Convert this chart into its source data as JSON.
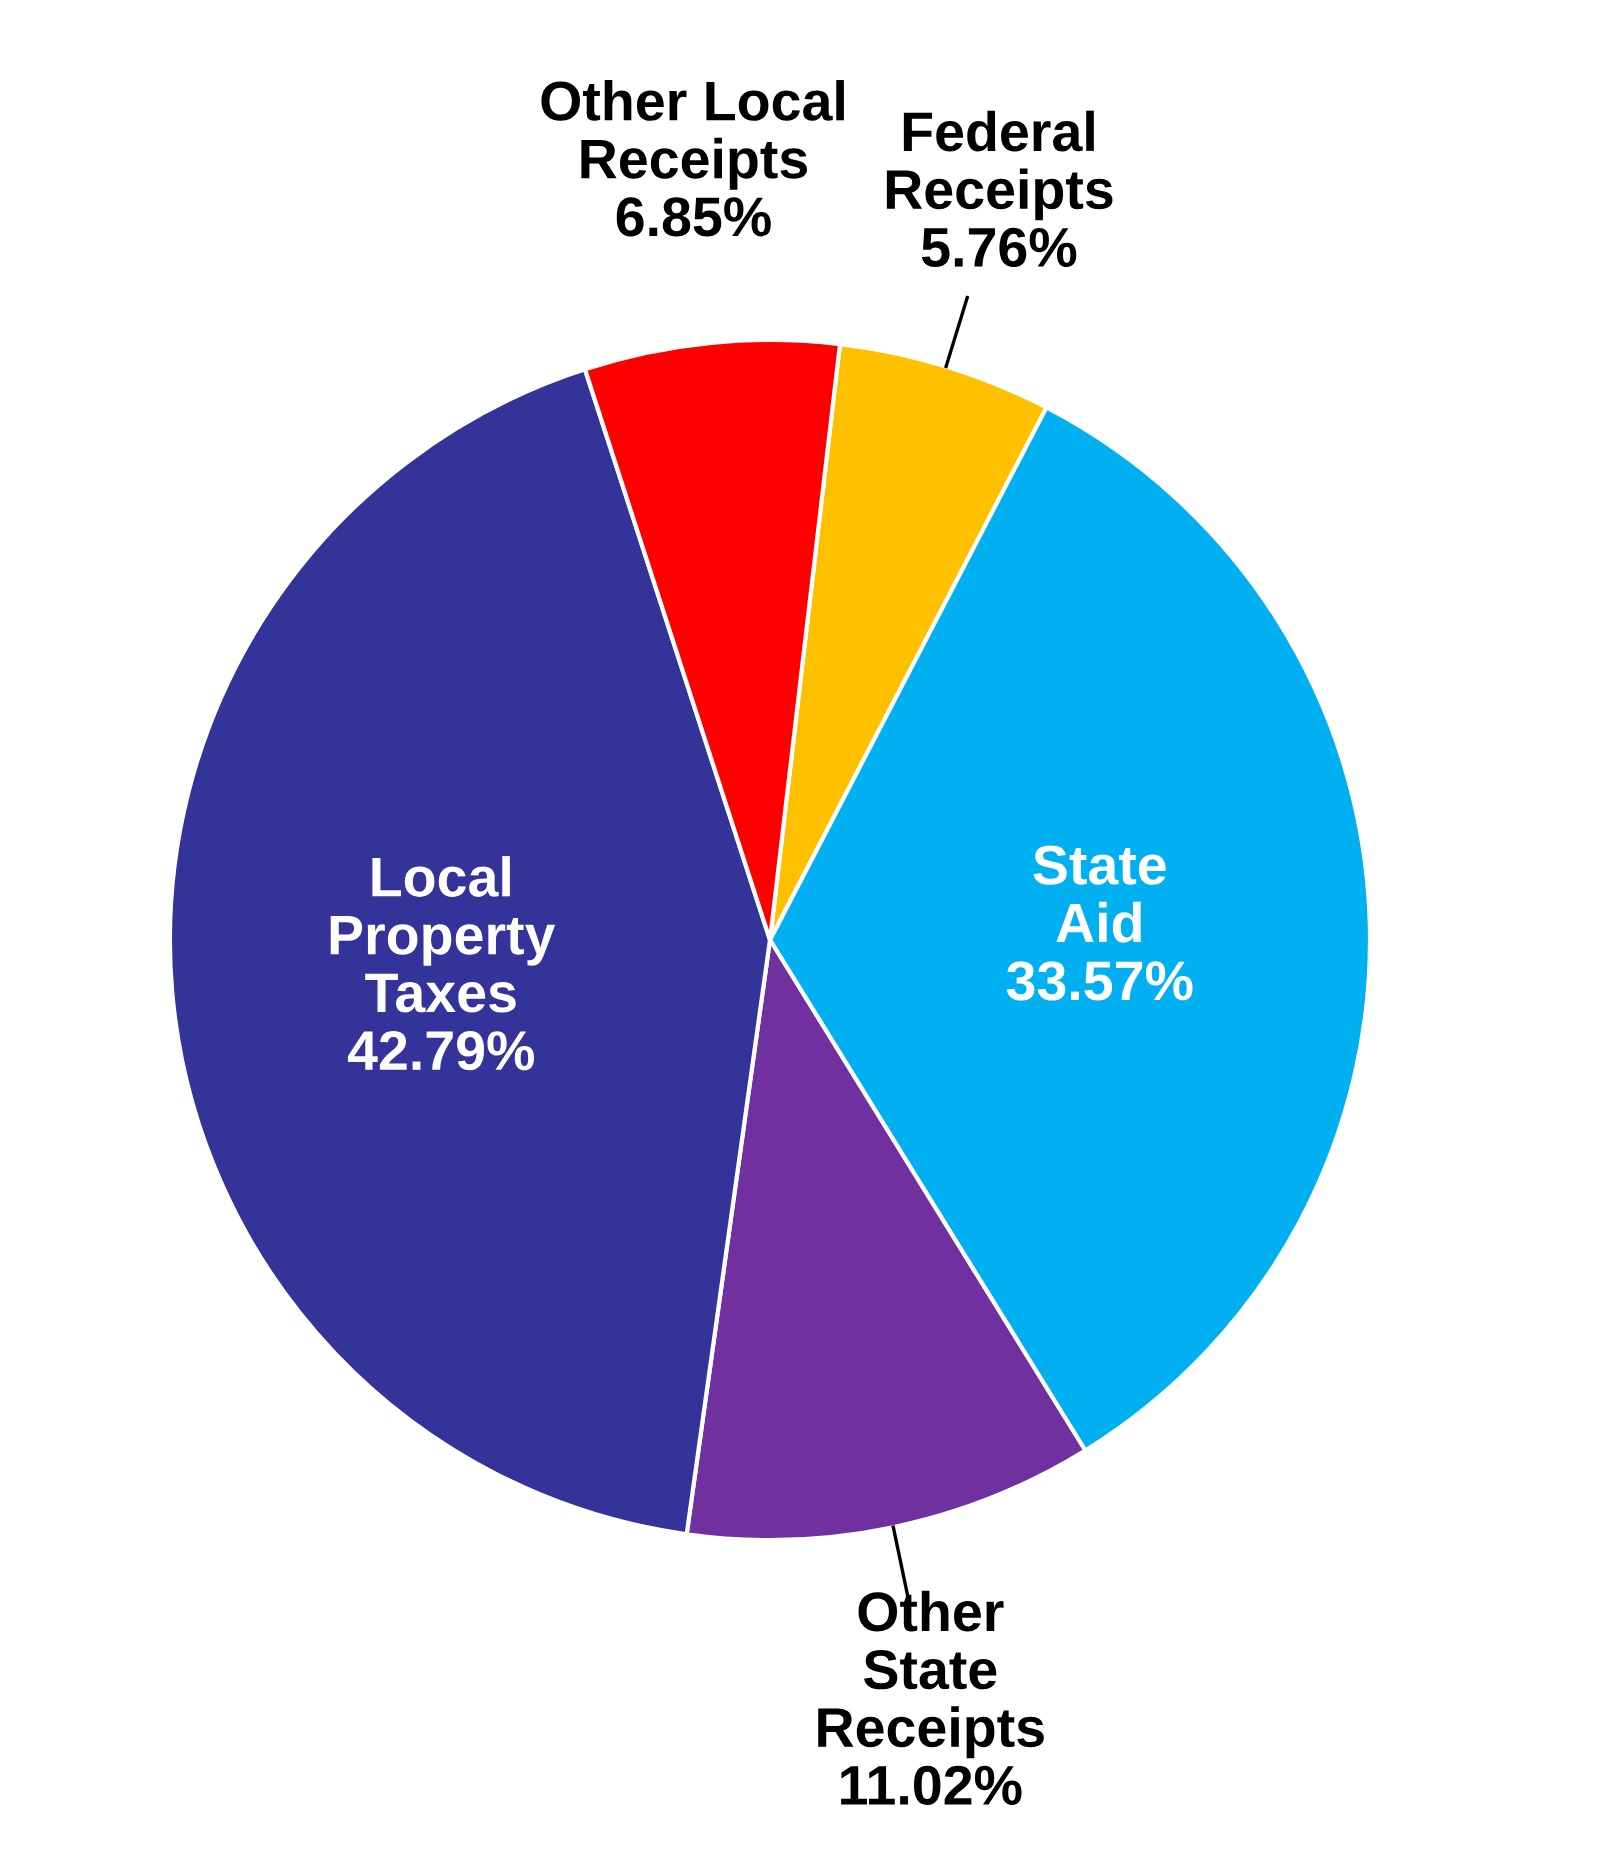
{
  "chart_data": {
    "type": "pie",
    "categories": [
      "Federal\nReceipts",
      "State\nAid",
      "Other\nState\nReceipts",
      "Local\nProperty\nTaxes",
      "Other Local\nReceipts"
    ],
    "values": [
      5.76,
      33.57,
      11.02,
      42.79,
      6.85
    ],
    "colors": [
      "#ffc000",
      "#00b0f0",
      "#7030a0",
      "#333399",
      "#ff0000"
    ],
    "value_labels": [
      "5.76%",
      "33.57%",
      "11.02%",
      "42.79%",
      "6.85%"
    ],
    "legend": false
  }
}
